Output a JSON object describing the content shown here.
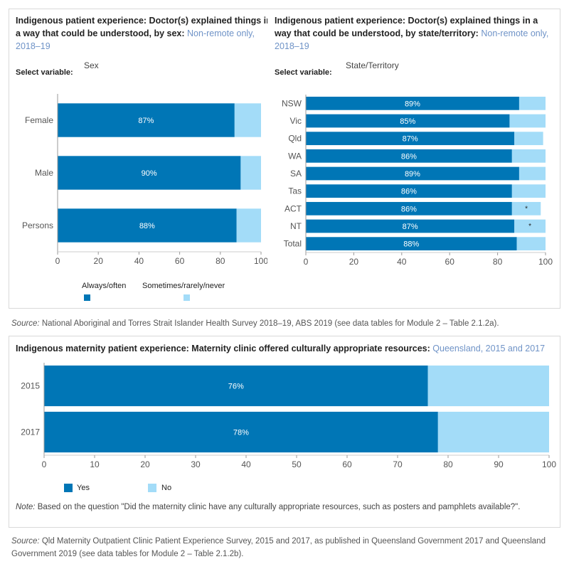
{
  "colors": {
    "primary": "#0076b6",
    "secondary": "#a3dcf8",
    "highlight": "#6f93c7"
  },
  "panel1": {
    "title_bold": "Indigenous patient experience: Doctor(s) explained things in a way that could be understood, by sex:",
    "title_rest": "Non-remote only, 2018–19",
    "select_label": "Select variable:",
    "select_value": "Sex"
  },
  "panel2": {
    "title_bold": "Indigenous patient experience: Doctor(s) explained things in a way that could be understood, by state/territory:",
    "title_rest": "Non-remote only, 2018–19",
    "select_label": "Select variable:",
    "select_value": "State/Territory"
  },
  "legend1": {
    "always": "Always/often",
    "sometimes": "Sometimes/rarely/never"
  },
  "source1": {
    "label": "Source:",
    "text": "National Aboriginal and Torres Strait Islander Health Survey 2018–19, ABS 2019 (see data tables for Module 2 – Table 2.1.2a)."
  },
  "panel3": {
    "title_bold": "Indigenous maternity patient experience: Maternity clinic offered culturally appropriate resources:",
    "title_rest": "Queensland, 2015 and 2017"
  },
  "legend3": {
    "yes": "Yes",
    "no": "No"
  },
  "note3": {
    "label": "Note:",
    "text": "Based on the question \"Did the maternity clinic have any culturally appropriate resources, such as posters and pamphlets available?\"."
  },
  "source2": {
    "label": "Source:",
    "text": "Qld Maternity Outpatient Clinic Patient Experience Survey, 2015 and 2017, as published in Queensland Government 2017 and Queensland Government 2019 (see data tables for Module 2 – Table 2.1.2b)."
  },
  "chart_data": [
    {
      "type": "bar",
      "orientation": "horizontal",
      "stacked": true,
      "categories": [
        "Female",
        "Male",
        "Persons"
      ],
      "series": [
        {
          "name": "Always/often",
          "values": [
            87,
            90,
            88
          ],
          "labels": [
            "87%",
            "90%",
            "88%"
          ]
        },
        {
          "name": "Sometimes/rarely/never",
          "values": [
            13,
            10,
            12
          ]
        }
      ],
      "xlim": [
        0,
        100
      ],
      "xticks": [
        0,
        20,
        40,
        60,
        80,
        100
      ]
    },
    {
      "type": "bar",
      "orientation": "horizontal",
      "stacked": true,
      "categories": [
        "NSW",
        "Vic",
        "Qld",
        "WA",
        "SA",
        "Tas",
        "ACT",
        "NT",
        "Total"
      ],
      "series": [
        {
          "name": "Always/often",
          "values": [
            89,
            85,
            87,
            86,
            89,
            86,
            86,
            87,
            88
          ],
          "labels": [
            "89%",
            "85%",
            "87%",
            "86%",
            "89%",
            "86%",
            "86%",
            "87%",
            "88%"
          ]
        },
        {
          "name": "Sometimes/rarely/never",
          "values": [
            11,
            15,
            12,
            14,
            11,
            14,
            12,
            13,
            12
          ],
          "labels": [
            "",
            "",
            "",
            "",
            "",
            "",
            "*",
            "*",
            ""
          ]
        }
      ],
      "xlim": [
        0,
        100
      ],
      "xticks": [
        0,
        20,
        40,
        60,
        80,
        100
      ]
    },
    {
      "type": "bar",
      "orientation": "horizontal",
      "stacked": true,
      "categories": [
        "2015",
        "2017"
      ],
      "series": [
        {
          "name": "Yes",
          "values": [
            76,
            78
          ],
          "labels": [
            "76%",
            "78%"
          ]
        },
        {
          "name": "No",
          "values": [
            24,
            22
          ]
        }
      ],
      "xlim": [
        0,
        100
      ],
      "xticks": [
        0,
        10,
        20,
        30,
        40,
        50,
        60,
        70,
        80,
        90,
        100
      ]
    }
  ]
}
